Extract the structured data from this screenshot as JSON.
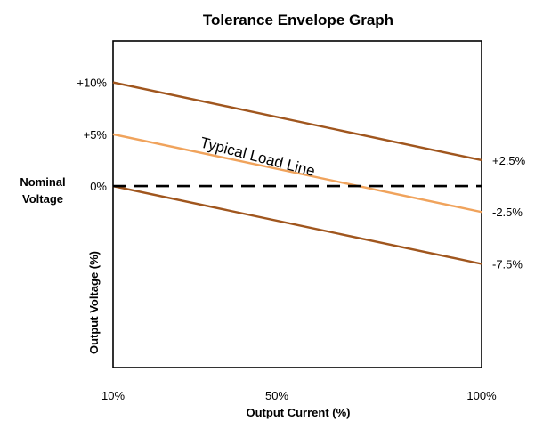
{
  "chart_data": {
    "type": "line",
    "title": "Tolerance Envelope Graph",
    "xlabel": "Output Current (%)",
    "ylabel": "Output Voltage (%)",
    "nominal_label": [
      "Nominal",
      "Voltage"
    ],
    "x_ticks": [
      {
        "label": "10%",
        "value": 10
      },
      {
        "label": "50%",
        "value": 50
      },
      {
        "label": "100%",
        "value": 100
      }
    ],
    "y_ticks_left": [
      {
        "label": "+10%",
        "value": 10
      },
      {
        "label": "+5%",
        "value": 5
      },
      {
        "label": "0%",
        "value": 0
      }
    ],
    "y_ticks_right": [
      {
        "label": "+2.5%",
        "value": 2.5
      },
      {
        "label": "-2.5%",
        "value": -2.5
      },
      {
        "label": "-7.5%",
        "value": -7.5
      }
    ],
    "xlim": [
      10,
      100
    ],
    "ylim": [
      -17.5,
      14
    ],
    "series": [
      {
        "name": "",
        "x": [
          10,
          100
        ],
        "y": [
          10,
          2.5
        ],
        "color": "#a0561e",
        "dash": false
      },
      {
        "name": "Typical Load Line",
        "x": [
          10,
          100
        ],
        "y": [
          5,
          -2.5
        ],
        "color": "#f0a35c",
        "dash": false
      },
      {
        "name": "",
        "x": [
          10,
          100
        ],
        "y": [
          0,
          -7.5
        ],
        "color": "#a0561e",
        "dash": false
      },
      {
        "name": "",
        "x": [
          10,
          100
        ],
        "y": [
          0,
          0
        ],
        "color": "#000000",
        "dash": true
      }
    ],
    "annotations": [
      {
        "text": "Typical Load Line"
      }
    ]
  }
}
